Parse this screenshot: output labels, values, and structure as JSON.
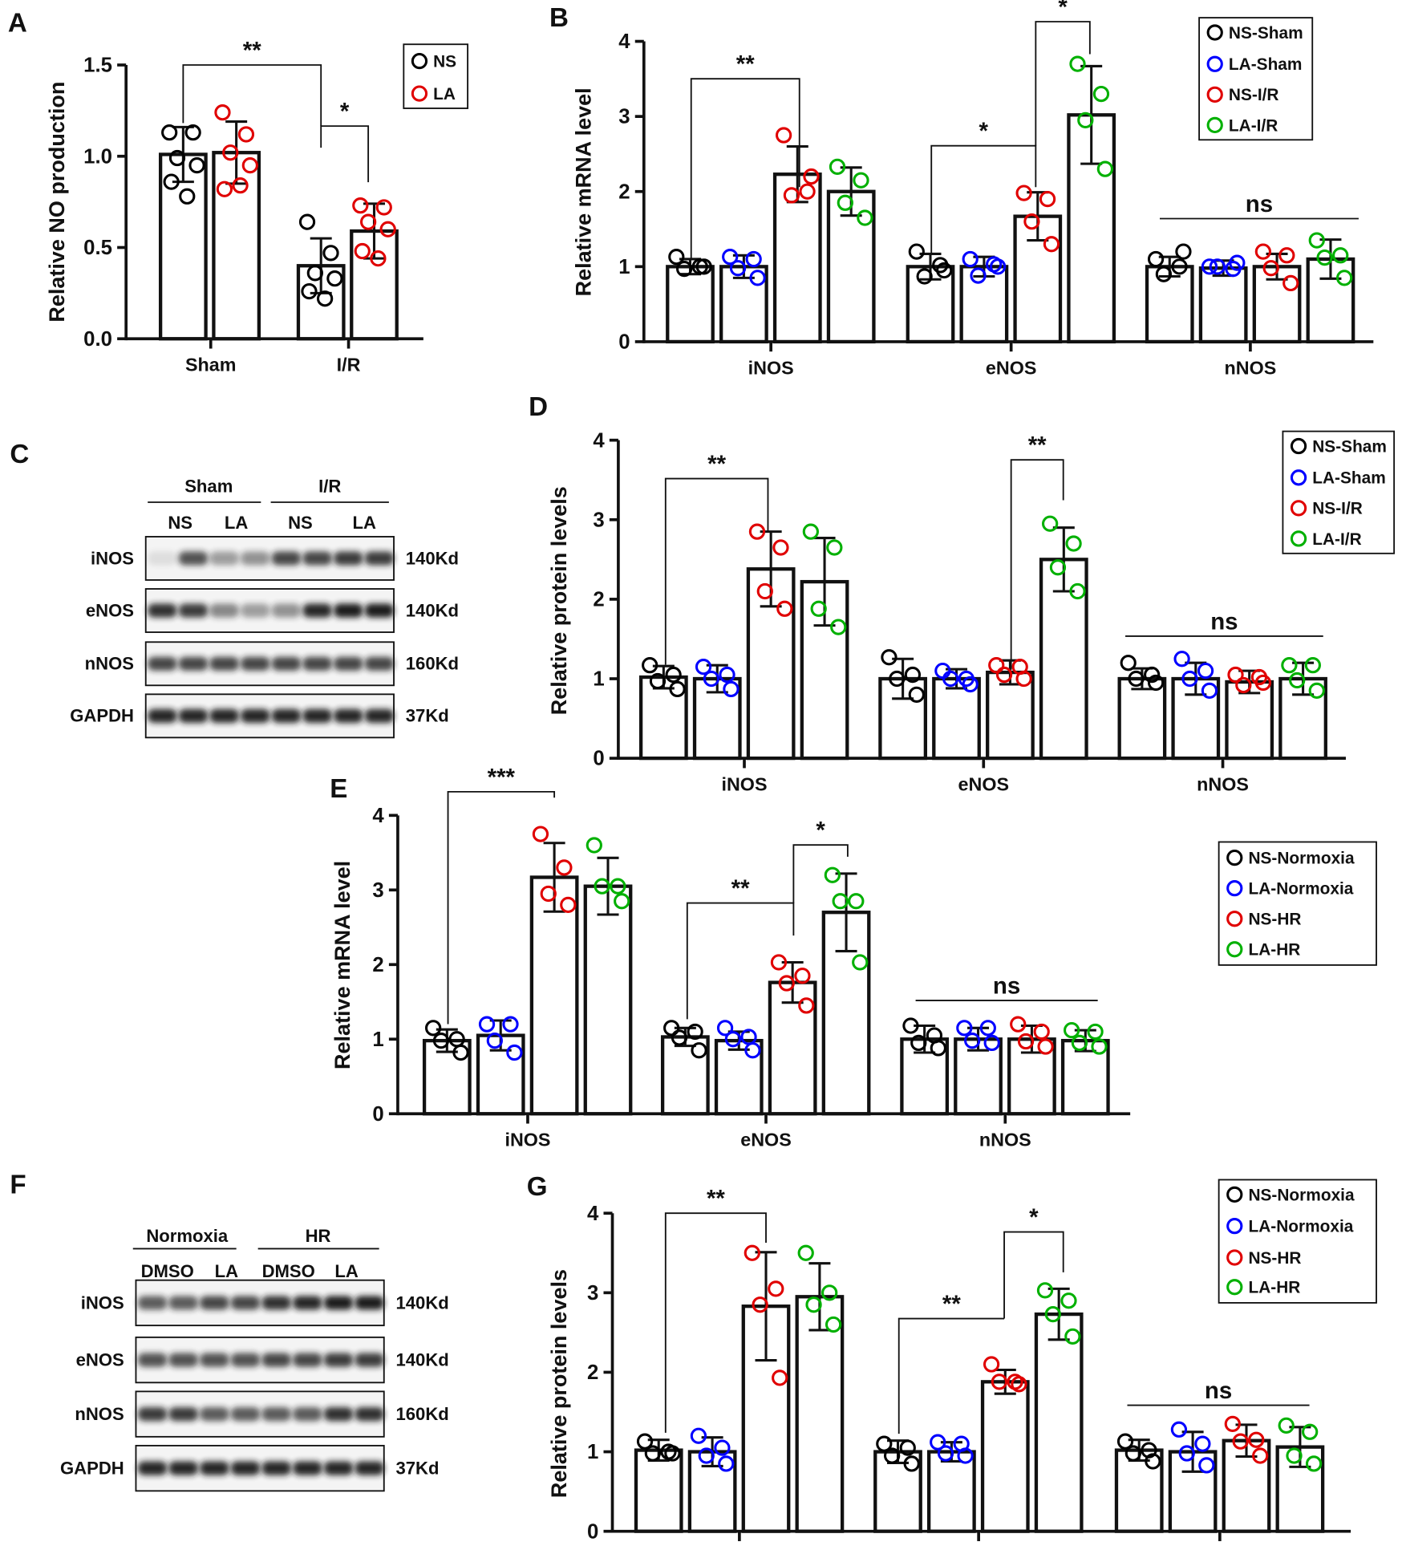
{
  "chart_data": [
    {
      "type": "bar",
      "panel": "A",
      "ylabel": "Relative NO production",
      "categories": [
        "Sham",
        "I/R"
      ],
      "series": [
        {
          "name": "NS",
          "color": "#000000",
          "values": [
            1.01,
            0.4
          ],
          "errors": [
            0.15,
            0.15
          ],
          "points": [
            [
              1.13,
              1.13,
              0.99,
              0.95,
              0.86,
              0.78
            ],
            [
              0.64,
              0.47,
              0.36,
              0.33,
              0.26,
              0.22
            ]
          ]
        },
        {
          "name": "LA",
          "color": "#e00000",
          "values": [
            1.02,
            0.59
          ],
          "errors": [
            0.17,
            0.15
          ],
          "points": [
            [
              1.24,
              1.12,
              1.02,
              0.95,
              0.82,
              0.84
            ],
            [
              0.73,
              0.72,
              0.64,
              0.6,
              0.48,
              0.44
            ]
          ]
        }
      ],
      "ylim": [
        0,
        1.5
      ],
      "yticks": [
        {
          "value": 0,
          "label": "0.0"
        },
        0.5,
        {
          "value": 1,
          "label": "1.0"
        },
        1.5
      ],
      "annotations": [
        "**",
        "*"
      ]
    },
    {
      "type": "bar",
      "panel": "B",
      "ylabel": "Relative mRNA level",
      "categories": [
        "iNOS",
        "eNOS",
        "nNOS"
      ],
      "series": [
        {
          "name": "NS-Sham",
          "color": "#000000",
          "values": [
            1.0,
            1.0,
            1.0
          ],
          "errors": [
            0.1,
            0.17,
            0.13
          ],
          "points": [
            [
              1.13,
              1.0,
              0.97,
              1.0
            ],
            [
              1.2,
              1.02,
              0.87,
              0.95
            ],
            [
              1.1,
              1.0,
              0.9,
              1.2
            ]
          ]
        },
        {
          "name": "LA-Sham",
          "color": "#0000ff",
          "values": [
            1.0,
            1.0,
            0.98
          ],
          "errors": [
            0.15,
            0.13,
            0.1
          ],
          "points": [
            [
              1.13,
              1.1,
              0.98,
              0.85
            ],
            [
              1.1,
              1.03,
              0.88,
              1.0
            ],
            [
              1.0,
              0.97,
              1.0,
              1.05
            ]
          ]
        },
        {
          "name": "NS-I/R",
          "color": "#e00000",
          "values": [
            2.23,
            1.67,
            1.0
          ],
          "errors": [
            0.37,
            0.32,
            0.17
          ],
          "points": [
            [
              2.75,
              2.0,
              1.95,
              2.2
            ],
            [
              1.98,
              1.9,
              1.6,
              1.3
            ],
            [
              1.2,
              1.15,
              0.98,
              0.78
            ]
          ]
        },
        {
          "name": "LA-I/R",
          "color": "#00b000",
          "values": [
            2.0,
            3.02,
            1.1
          ],
          "errors": [
            0.32,
            0.65,
            0.26
          ],
          "points": [
            [
              2.33,
              2.15,
              1.85,
              1.65
            ],
            [
              3.7,
              3.3,
              2.95,
              2.3
            ],
            [
              1.35,
              1.15,
              1.12,
              0.85
            ]
          ]
        }
      ],
      "ylim": [
        0,
        4
      ],
      "yticks": [
        0,
        1,
        2,
        3,
        4
      ],
      "annotations": [
        "**",
        "*",
        "*",
        "ns"
      ]
    },
    {
      "type": "bar",
      "panel": "D",
      "ylabel": "Relative protein levels",
      "categories": [
        "iNOS",
        "eNOS",
        "nNOS"
      ],
      "series": [
        {
          "name": "NS-Sham",
          "color": "#000000",
          "values": [
            1.02,
            1.0,
            1.0
          ],
          "errors": [
            0.14,
            0.25,
            0.13
          ],
          "points": [
            [
              1.17,
              1.05,
              0.97,
              0.87
            ],
            [
              1.27,
              1.05,
              1.0,
              0.8
            ],
            [
              1.2,
              1.05,
              1.0,
              0.95
            ]
          ]
        },
        {
          "name": "LA-Sham",
          "color": "#0000ff",
          "values": [
            1.0,
            1.0,
            1.0
          ],
          "errors": [
            0.17,
            0.12,
            0.2
          ],
          "points": [
            [
              1.15,
              1.05,
              1.0,
              0.87
            ],
            [
              1.1,
              1.0,
              1.0,
              0.93
            ],
            [
              1.25,
              1.1,
              1.0,
              0.85
            ]
          ]
        },
        {
          "name": "NS-I/R",
          "color": "#e00000",
          "values": [
            2.38,
            1.08,
            0.96
          ],
          "errors": [
            0.47,
            0.15,
            0.14
          ],
          "points": [
            [
              2.85,
              2.65,
              2.1,
              1.88
            ],
            [
              1.17,
              1.15,
              1.05,
              1.0
            ],
            [
              1.05,
              1.02,
              0.92,
              0.95
            ]
          ]
        },
        {
          "name": "LA-I/R",
          "color": "#00b000",
          "values": [
            2.22,
            2.5,
            1.0
          ],
          "errors": [
            0.55,
            0.4,
            0.2
          ],
          "points": [
            [
              2.85,
              2.65,
              1.88,
              1.65
            ],
            [
              2.95,
              2.7,
              2.4,
              2.1
            ],
            [
              1.17,
              1.17,
              0.98,
              0.85
            ]
          ]
        }
      ],
      "ylim": [
        0,
        4
      ],
      "yticks": [
        0,
        1,
        2,
        3,
        4
      ],
      "annotations": [
        "**",
        "**",
        "ns"
      ]
    },
    {
      "type": "bar",
      "panel": "E",
      "ylabel": "Relative mRNA level",
      "categories": [
        "iNOS",
        "eNOS",
        "nNOS"
      ],
      "series": [
        {
          "name": "NS-Normoxia",
          "color": "#000000",
          "values": [
            0.98,
            1.03,
            1.0
          ],
          "errors": [
            0.15,
            0.12,
            0.18
          ],
          "points": [
            [
              1.15,
              1.0,
              0.98,
              0.82
            ],
            [
              1.15,
              1.1,
              1.02,
              0.85
            ],
            [
              1.18,
              1.05,
              0.95,
              0.88
            ]
          ]
        },
        {
          "name": "LA-Normoxia",
          "color": "#0000ff",
          "values": [
            1.05,
            0.98,
            1.0
          ],
          "errors": [
            0.2,
            0.12,
            0.15
          ],
          "points": [
            [
              1.2,
              1.2,
              0.98,
              0.82
            ],
            [
              1.15,
              1.03,
              1.0,
              0.85
            ],
            [
              1.15,
              1.15,
              0.98,
              0.95
            ]
          ]
        },
        {
          "name": "NS-HR",
          "color": "#e00000",
          "values": [
            3.17,
            1.76,
            1.0
          ],
          "errors": [
            0.46,
            0.27,
            0.18
          ],
          "points": [
            [
              3.75,
              3.3,
              2.95,
              2.8
            ],
            [
              2.03,
              1.85,
              1.75,
              1.45
            ],
            [
              1.2,
              1.1,
              0.97,
              0.9
            ]
          ]
        },
        {
          "name": "LA-HR",
          "color": "#00b000",
          "values": [
            3.05,
            2.7,
            0.98
          ],
          "errors": [
            0.38,
            0.52,
            0.14
          ],
          "points": [
            [
              3.6,
              3.05,
              3.05,
              2.85
            ],
            [
              3.2,
              2.85,
              2.85,
              2.03
            ],
            [
              1.12,
              1.1,
              0.95,
              0.9
            ]
          ]
        }
      ],
      "ylim": [
        0,
        4
      ],
      "yticks": [
        0,
        1,
        2,
        3,
        4
      ],
      "annotations": [
        "***",
        "**",
        "*",
        "ns"
      ]
    },
    {
      "type": "bar",
      "panel": "G",
      "ylabel": "Relative protein levels",
      "categories": [
        null,
        null,
        null
      ],
      "series": [
        {
          "name": "NS-Normoxia",
          "color": "#000000",
          "values": [
            1.02,
            1.0,
            1.02
          ],
          "errors": [
            0.13,
            0.14,
            0.13
          ],
          "points": [
            [
              1.13,
              1.0,
              0.98,
              0.98
            ],
            [
              1.1,
              1.05,
              0.95,
              0.85
            ],
            [
              1.13,
              1.02,
              0.98,
              0.88
            ]
          ]
        },
        {
          "name": "LA-Normoxia",
          "color": "#0000ff",
          "values": [
            1.0,
            1.0,
            1.0
          ],
          "errors": [
            0.18,
            0.12,
            0.25
          ],
          "points": [
            [
              1.2,
              1.05,
              0.95,
              0.85
            ],
            [
              1.12,
              1.1,
              0.98,
              0.95
            ],
            [
              1.28,
              1.1,
              0.98,
              0.83
            ]
          ]
        },
        {
          "name": "NS-HR",
          "color": "#e00000",
          "values": [
            2.83,
            1.88,
            1.14
          ],
          "errors": [
            0.68,
            0.15,
            0.2
          ],
          "points": [
            [
              3.5,
              3.05,
              2.85,
              1.93
            ],
            [
              2.1,
              1.88,
              1.88,
              1.85
            ],
            [
              1.35,
              1.15,
              1.13,
              0.95
            ]
          ]
        },
        {
          "name": "LA-HR",
          "color": "#00b000",
          "values": [
            2.95,
            2.73,
            1.06
          ],
          "errors": [
            0.42,
            0.32,
            0.25
          ],
          "points": [
            [
              3.5,
              3.0,
              2.85,
              2.6
            ],
            [
              3.03,
              2.9,
              2.73,
              2.45
            ],
            [
              1.33,
              1.25,
              0.95,
              0.85
            ]
          ]
        }
      ],
      "ylim": [
        0,
        4
      ],
      "yticks": [
        0,
        1,
        2,
        3,
        4
      ],
      "annotations": [
        "**",
        "**",
        "*",
        "ns"
      ]
    }
  ],
  "blots": [
    {
      "panel": "C",
      "groups": [
        "Sham",
        "I/R"
      ],
      "lanes": [
        "NS",
        "LA",
        "NS",
        "LA"
      ],
      "rows": [
        {
          "protein": "iNOS",
          "size": "140Kd"
        },
        {
          "protein": "eNOS",
          "size": "140Kd"
        },
        {
          "protein": "nNOS",
          "size": "160Kd"
        },
        {
          "protein": "GAPDH",
          "size": "37Kd"
        }
      ]
    },
    {
      "panel": "F",
      "groups": [
        "Normoxia",
        "HR"
      ],
      "lanes": [
        "DMSO",
        "LA",
        "DMSO",
        "LA"
      ],
      "rows": [
        {
          "protein": "iNOS",
          "size": "140Kd"
        },
        {
          "protein": "eNOS",
          "size": "140Kd"
        },
        {
          "protein": "nNOS",
          "size": "160Kd"
        },
        {
          "protein": "GAPDH",
          "size": "37Kd"
        }
      ]
    }
  ]
}
